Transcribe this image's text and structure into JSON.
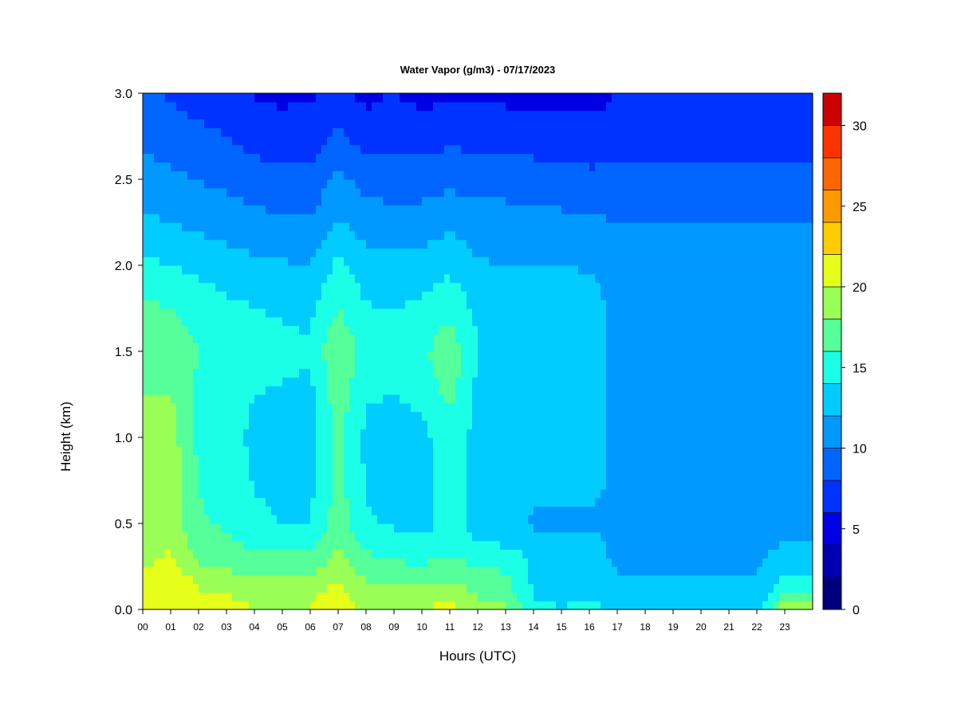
{
  "chart_data": {
    "type": "heatmap",
    "title": "Water Vapor (g/m3) - 07/17/2023",
    "xlabel": "Hours (UTC)",
    "ylabel": "Height (km)",
    "xlim": [
      0,
      24
    ],
    "ylim": [
      0,
      3
    ],
    "x_ticks": [
      "00",
      "01",
      "02",
      "03",
      "04",
      "05",
      "06",
      "07",
      "08",
      "09",
      "10",
      "11",
      "12",
      "13",
      "14",
      "15",
      "16",
      "17",
      "18",
      "19",
      "20",
      "21",
      "22",
      "23"
    ],
    "y_ticks": [
      "0.0",
      "0.5",
      "1.0",
      "1.5",
      "2.0",
      "2.5",
      "3.0"
    ],
    "colorbar": {
      "min": 0,
      "max": 32,
      "step": 2,
      "tick_values": [
        0,
        5,
        10,
        15,
        20,
        25,
        30
      ],
      "tick_labels": [
        "0",
        "5",
        "10",
        "15",
        "20",
        "25",
        "30"
      ],
      "colors": [
        "#00007F",
        "#0000B2",
        "#0000E5",
        "#0033FF",
        "#0066FF",
        "#0099FF",
        "#00CCFF",
        "#1AFFE5",
        "#55FF99",
        "#99FF55",
        "#E5FF1A",
        "#FFCC00",
        "#FF9900",
        "#FF6600",
        "#FF3300",
        "#CC0000",
        "#7F0000"
      ]
    },
    "profile_heights_km": [
      0.0,
      0.1,
      0.2,
      0.3,
      0.4,
      0.5,
      0.75,
      1.0,
      1.25,
      1.5,
      1.75,
      2.0,
      2.25,
      2.5,
      2.75,
      3.0
    ],
    "profiles": [
      {
        "hour": 0,
        "values": [
          20.5,
          20.5,
          20.2,
          19.5,
          19.0,
          18.8,
          18.5,
          18.2,
          18.0,
          17.6,
          16.5,
          14.5,
          12.5,
          10.8,
          9.5,
          8.2
        ]
      },
      {
        "hour": 1,
        "values": [
          20.8,
          21.2,
          21.0,
          20.2,
          19.8,
          19.5,
          19.3,
          19.0,
          18.0,
          17.5,
          16.0,
          14.0,
          12.0,
          10.5,
          8.8,
          7.8
        ]
      },
      {
        "hour": 2,
        "values": [
          20.5,
          20.2,
          19.5,
          17.5,
          16.5,
          16.2,
          16.0,
          15.5,
          15.5,
          16.0,
          15.0,
          13.5,
          11.5,
          10.0,
          8.5,
          7.2
        ]
      },
      {
        "hour": 3,
        "values": [
          20.2,
          20.0,
          18.5,
          17.0,
          16.2,
          15.8,
          15.3,
          15.0,
          15.2,
          15.5,
          14.5,
          13.0,
          11.0,
          9.5,
          8.0,
          6.5
        ]
      },
      {
        "hour": 4,
        "values": [
          20.0,
          19.8,
          18.0,
          16.5,
          15.5,
          14.5,
          13.8,
          13.5,
          14.0,
          14.8,
          14.0,
          12.5,
          10.5,
          9.0,
          7.2,
          5.8
        ]
      },
      {
        "hour": 5,
        "values": [
          20.0,
          19.5,
          18.0,
          16.5,
          15.5,
          14.0,
          13.5,
          13.2,
          13.8,
          14.5,
          13.8,
          12.2,
          10.5,
          8.5,
          7.0,
          5.5
        ]
      },
      {
        "hour": 6,
        "values": [
          20.0,
          19.8,
          18.2,
          16.5,
          15.5,
          14.0,
          13.5,
          13.0,
          13.5,
          14.3,
          13.5,
          12.0,
          10.2,
          8.5,
          7.0,
          5.8
        ]
      },
      {
        "hour": 7,
        "values": [
          20.8,
          20.5,
          19.8,
          18.5,
          17.5,
          17.0,
          16.8,
          16.5,
          17.2,
          18.0,
          16.0,
          14.5,
          12.2,
          10.5,
          8.5,
          6.5
        ]
      },
      {
        "hour": 8,
        "values": [
          19.5,
          19.0,
          17.5,
          16.5,
          15.2,
          14.2,
          13.8,
          13.5,
          14.2,
          15.0,
          14.2,
          12.8,
          11.0,
          9.2,
          7.0,
          5.5
        ]
      },
      {
        "hour": 9,
        "values": [
          19.8,
          19.0,
          17.0,
          15.8,
          14.5,
          13.8,
          13.5,
          13.2,
          14.0,
          15.0,
          14.0,
          12.5,
          10.8,
          9.0,
          7.5,
          6.0
        ]
      },
      {
        "hour": 10,
        "values": [
          20.0,
          19.0,
          17.0,
          15.5,
          14.2,
          13.5,
          13.5,
          13.5,
          14.5,
          15.5,
          14.5,
          12.8,
          11.0,
          9.0,
          7.0,
          5.5
        ]
      },
      {
        "hour": 11,
        "values": [
          20.5,
          19.5,
          17.5,
          16.0,
          15.0,
          14.5,
          14.5,
          14.8,
          16.5,
          17.5,
          15.5,
          13.5,
          11.5,
          9.5,
          7.5,
          5.5
        ]
      },
      {
        "hour": 12,
        "values": [
          19.0,
          17.5,
          16.5,
          15.5,
          14.0,
          13.5,
          13.5,
          13.5,
          13.5,
          14.0,
          13.5,
          12.2,
          11.0,
          9.2,
          7.2,
          5.5
        ]
      },
      {
        "hour": 13,
        "values": [
          18.5,
          16.8,
          16.2,
          15.0,
          13.5,
          13.2,
          13.2,
          13.2,
          13.2,
          13.8,
          13.2,
          12.0,
          10.8,
          9.2,
          7.2,
          5.5
        ]
      },
      {
        "hour": 14,
        "values": [
          14.5,
          13.8,
          13.5,
          13.5,
          13.3,
          11.5,
          13.2,
          13.2,
          13.2,
          13.8,
          13.2,
          12.0,
          10.8,
          9.0,
          7.0,
          5.2
        ]
      },
      {
        "hour": 15,
        "values": [
          14.0,
          13.5,
          13.3,
          13.3,
          13.3,
          11.2,
          13.2,
          13.2,
          13.2,
          14.0,
          13.3,
          12.0,
          10.5,
          8.8,
          7.0,
          5.2
        ]
      },
      {
        "hour": 16,
        "values": [
          14.5,
          13.8,
          13.5,
          13.5,
          13.2,
          11.5,
          13.2,
          13.2,
          13.3,
          14.0,
          13.2,
          11.8,
          10.5,
          8.5,
          6.8,
          5.2
        ]
      },
      {
        "hour": 17,
        "values": [
          13.5,
          12.5,
          12.0,
          11.5,
          11.0,
          11.0,
          11.0,
          11.0,
          11.0,
          11.0,
          11.0,
          11.0,
          10.0,
          8.5,
          7.0,
          6.0
        ]
      },
      {
        "hour": 18,
        "values": [
          13.5,
          12.5,
          12.0,
          11.5,
          11.0,
          11.0,
          11.0,
          11.0,
          11.0,
          11.0,
          11.0,
          11.0,
          10.0,
          8.5,
          7.0,
          6.0
        ]
      },
      {
        "hour": 19,
        "values": [
          13.5,
          12.5,
          12.0,
          11.5,
          11.0,
          11.0,
          11.0,
          11.0,
          11.0,
          11.0,
          11.0,
          11.0,
          10.0,
          8.5,
          7.0,
          6.0
        ]
      },
      {
        "hour": 20,
        "values": [
          13.5,
          12.5,
          12.0,
          11.5,
          11.0,
          11.0,
          11.0,
          11.0,
          11.0,
          11.0,
          11.0,
          11.0,
          10.0,
          8.5,
          7.0,
          6.0
        ]
      },
      {
        "hour": 21,
        "values": [
          13.5,
          12.5,
          12.0,
          11.5,
          11.0,
          11.0,
          11.0,
          11.0,
          11.0,
          11.0,
          11.0,
          11.0,
          10.0,
          8.5,
          7.0,
          6.0
        ]
      },
      {
        "hour": 22,
        "values": [
          13.5,
          12.5,
          12.0,
          11.5,
          11.0,
          11.0,
          11.0,
          11.0,
          11.0,
          11.0,
          11.0,
          11.0,
          10.0,
          8.5,
          7.0,
          6.0
        ]
      },
      {
        "hour": 23,
        "values": [
          19.5,
          16.0,
          14.0,
          13.0,
          12.0,
          11.5,
          11.5,
          11.0,
          11.0,
          11.0,
          11.0,
          11.0,
          10.0,
          8.5,
          7.0,
          6.0
        ]
      },
      {
        "hour": 24,
        "values": [
          19.5,
          16.0,
          14.0,
          13.0,
          12.0,
          11.5,
          11.5,
          11.0,
          11.0,
          11.0,
          11.0,
          11.0,
          10.0,
          8.5,
          7.0,
          6.0
        ]
      }
    ],
    "grid": false,
    "legend": "colorbar-right"
  }
}
